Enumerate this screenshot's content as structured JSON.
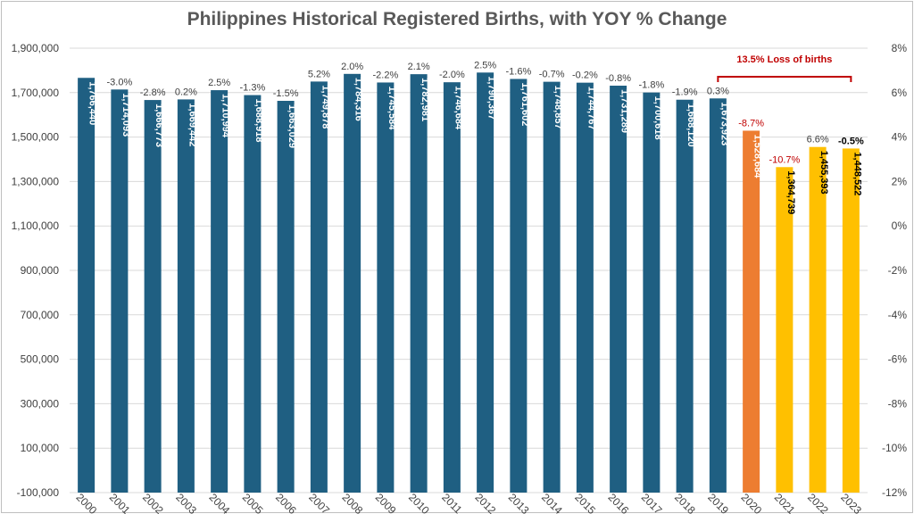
{
  "chart_data": {
    "type": "bar",
    "title": "Philippines Historical Registered Births, with YOY % Change",
    "categories": [
      "2000",
      "2001",
      "2002",
      "2003",
      "2004",
      "2005",
      "2006",
      "2007",
      "2008",
      "2009",
      "2010",
      "2011",
      "2012",
      "2013",
      "2014",
      "2015",
      "2016",
      "2017",
      "2018",
      "2019",
      "2020",
      "2021",
      "2022",
      "2023"
    ],
    "series": [
      {
        "values": [
          1766440,
          1714093,
          1666773,
          1669442,
          1710994,
          1688918,
          1663029,
          1749878,
          1784316,
          1745584,
          1782981,
          1746684,
          1790367,
          1761602,
          1748857,
          1744767,
          1731289,
          1700618,
          1668120,
          1673923,
          1528684,
          1364739,
          1455393,
          1448522
        ],
        "value_labels": [
          "1,766,440",
          "1,714,093",
          "1,666,773",
          "1,669,442",
          "1,710,994",
          "1,688,918",
          "1,663,029",
          "1,749,878",
          "1,784,316",
          "1,745,584",
          "1,782,981",
          "1,746,684",
          "1,790,367",
          "1,761,602",
          "1,748,857",
          "1,744,767",
          "1,731,289",
          "1,700,618",
          "1,668,120",
          "1,673,923",
          "1,528,684",
          "1,364,739",
          "1,455,393",
          "1,448,522"
        ]
      }
    ],
    "yoy_labels": [
      "",
      "-3.0%",
      "-2.8%",
      "0.2%",
      "2.5%",
      "-1.3%",
      "-1.5%",
      "5.2%",
      "2.0%",
      "-2.2%",
      "2.1%",
      "-2.0%",
      "2.5%",
      "-1.6%",
      "-0.7%",
      "-0.2%",
      "-0.8%",
      "-1.8%",
      "-1.9%",
      "0.3%",
      "-8.7%",
      "-10.7%",
      "6.6%",
      "-0.5%"
    ],
    "ylim": [
      -100000,
      1900000
    ],
    "y_ticks": [
      -100000,
      100000,
      300000,
      500000,
      700000,
      900000,
      1100000,
      1300000,
      1500000,
      1700000,
      1900000
    ],
    "y_tick_labels": [
      "-100,000",
      "100,000",
      "300,000",
      "500,000",
      "700,000",
      "900,000",
      "1,100,000",
      "1,300,000",
      "1,500,000",
      "1,700,000",
      "1,900,000"
    ],
    "y2lim": [
      -12,
      8
    ],
    "y2_ticks": [
      -12,
      -10,
      -8,
      -6,
      -4,
      -2,
      0,
      2,
      4,
      6,
      8
    ],
    "y2_tick_labels": [
      "-12%",
      "-10%",
      "-8%",
      "-6%",
      "-4%",
      "-2%",
      "0%",
      "2%",
      "4%",
      "6%",
      "8%"
    ],
    "annotation": "13.5% Loss of births",
    "grid": true,
    "colors": {
      "default_bar": "#1f5f82",
      "year_2020": "#ed7d31",
      "year_2021_2023": "#ffc000",
      "red_text": "#c00000",
      "gridline": "#d9d9d9"
    }
  }
}
